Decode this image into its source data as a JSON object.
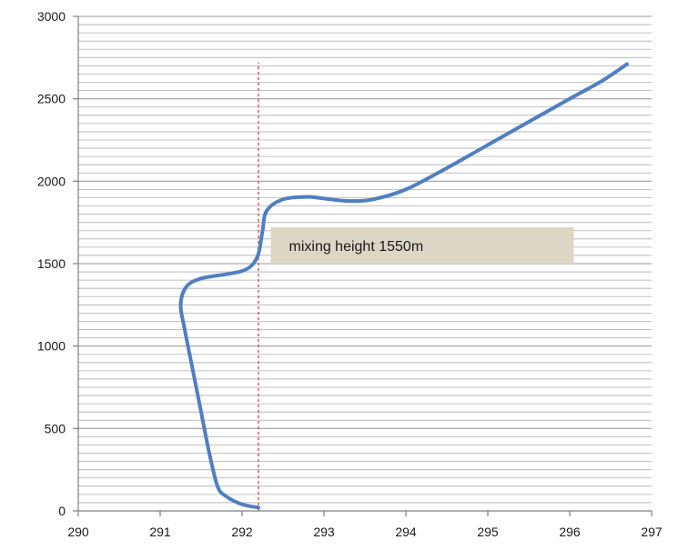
{
  "chart_data": {
    "type": "line",
    "title": "",
    "xlabel": "",
    "ylabel": "",
    "xlim": [
      290,
      297
    ],
    "ylim": [
      0,
      3000
    ],
    "x_ticks": [
      290,
      291,
      292,
      293,
      294,
      295,
      296,
      297
    ],
    "y_ticks": [
      0,
      500,
      1000,
      1500,
      2000,
      2500,
      3000
    ],
    "y_minor_step": 50,
    "grid": true,
    "legend": "none",
    "series": [
      {
        "color": "#4f7fc1",
        "points": [
          {
            "x": 292.2,
            "y": 20
          },
          {
            "x": 292.0,
            "y": 40
          },
          {
            "x": 291.8,
            "y": 90
          },
          {
            "x": 291.7,
            "y": 150
          },
          {
            "x": 291.6,
            "y": 350
          },
          {
            "x": 291.5,
            "y": 600
          },
          {
            "x": 291.4,
            "y": 850
          },
          {
            "x": 291.3,
            "y": 1100
          },
          {
            "x": 291.25,
            "y": 1250
          },
          {
            "x": 291.32,
            "y": 1360
          },
          {
            "x": 291.5,
            "y": 1410
          },
          {
            "x": 291.8,
            "y": 1435
          },
          {
            "x": 292.0,
            "y": 1455
          },
          {
            "x": 292.12,
            "y": 1490
          },
          {
            "x": 292.2,
            "y": 1560
          },
          {
            "x": 292.25,
            "y": 1700
          },
          {
            "x": 292.3,
            "y": 1820
          },
          {
            "x": 292.5,
            "y": 1890
          },
          {
            "x": 292.8,
            "y": 1905
          },
          {
            "x": 293.0,
            "y": 1895
          },
          {
            "x": 293.3,
            "y": 1880
          },
          {
            "x": 293.6,
            "y": 1890
          },
          {
            "x": 294.0,
            "y": 1950
          },
          {
            "x": 294.5,
            "y": 2080
          },
          {
            "x": 295.0,
            "y": 2220
          },
          {
            "x": 295.5,
            "y": 2360
          },
          {
            "x": 296.0,
            "y": 2500
          },
          {
            "x": 296.4,
            "y": 2610
          },
          {
            "x": 296.7,
            "y": 2710
          }
        ]
      }
    ],
    "reference_line": {
      "x": 292.2,
      "y_range": [
        0,
        2720
      ],
      "color": "#d9534f",
      "style": "dotted"
    },
    "annotations": [
      {
        "text": "mixing height 1550m",
        "x_range": [
          292.35,
          296.05
        ],
        "y_range": [
          1500,
          1720
        ],
        "fill": "#dcd6c4"
      }
    ],
    "colors": {
      "axis": "#7f7f7f",
      "grid": "#8c8c8c",
      "line": "#4f7fc1",
      "reference": "#d9534f",
      "annotation_fill": "#dcd6c4"
    }
  }
}
